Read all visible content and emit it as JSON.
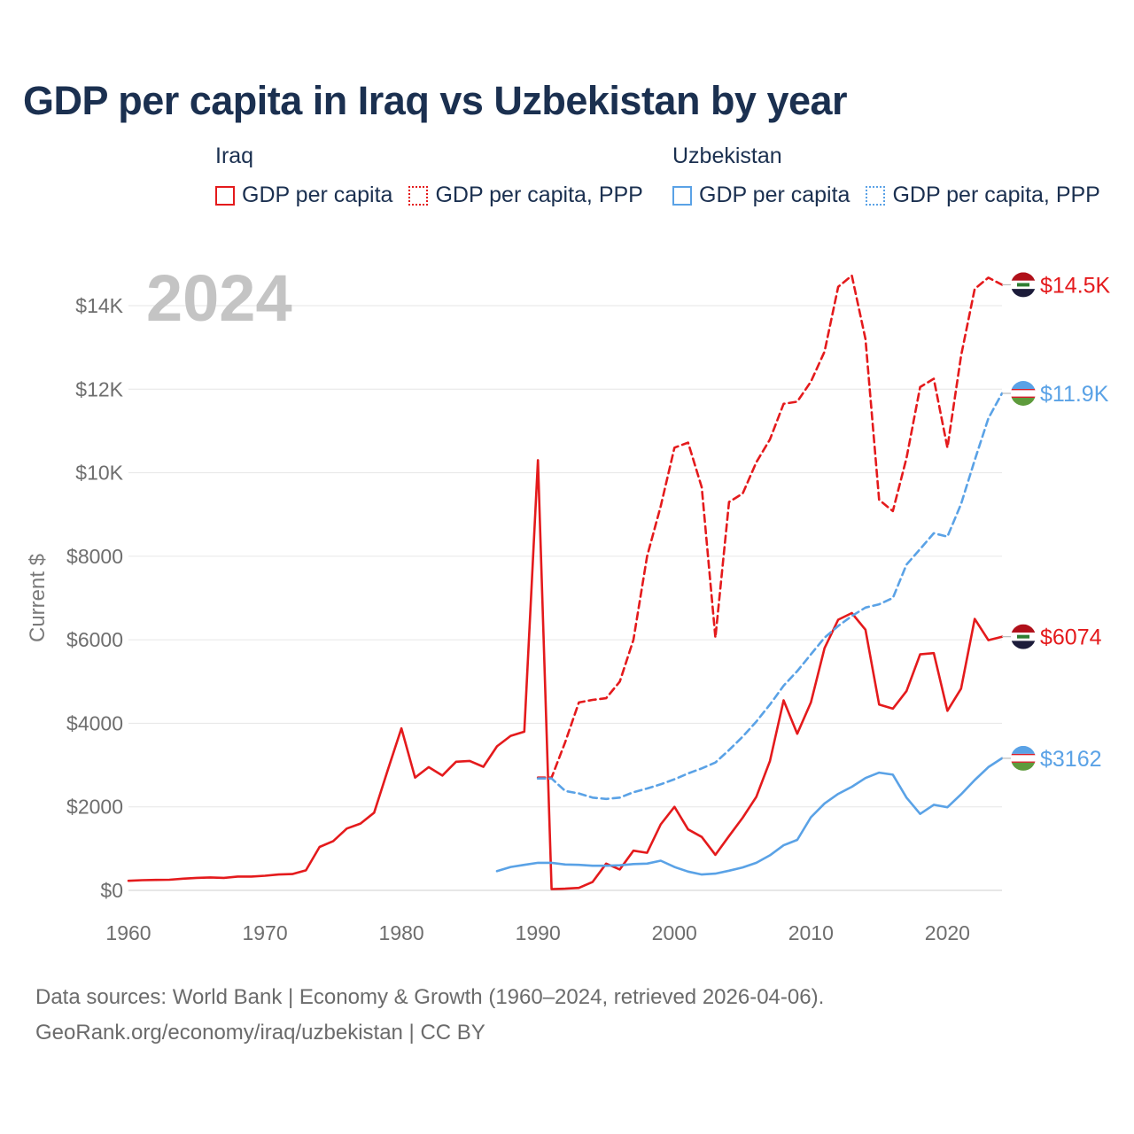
{
  "title": "GDP per capita in Iraq vs Uzbekistan by year",
  "legend": {
    "groups": [
      {
        "country": "Iraq",
        "color": "#e41a1c",
        "items": [
          {
            "label": "GDP per capita",
            "style": "solid"
          },
          {
            "label": "GDP per capita, PPP",
            "style": "dotted"
          }
        ]
      },
      {
        "country": "Uzbekistan",
        "color": "#5aa2e6",
        "items": [
          {
            "label": "GDP per capita",
            "style": "solid"
          },
          {
            "label": "GDP per capita, PPP",
            "style": "dotted"
          }
        ]
      }
    ]
  },
  "year_label": "2024",
  "source": {
    "line1": "Data sources: World Bank | Economy & Growth (1960–2024, retrieved 2026-04-06).",
    "line2": "GeoRank.org/economy/iraq/uzbekistan | CC BY"
  },
  "chart_data": {
    "type": "line",
    "title": "GDP per capita in Iraq vs Uzbekistan by year",
    "ylabel": "Current $",
    "xlabel": "",
    "xlim": [
      1960,
      2024
    ],
    "ylim": [
      0,
      14000
    ],
    "grid": true,
    "x_ticks": [
      1960,
      1970,
      1980,
      1990,
      2000,
      2010,
      2020
    ],
    "y_ticks": [
      0,
      2000,
      4000,
      6000,
      8000,
      10000,
      12000,
      14000
    ],
    "y_tick_labels": [
      "$0",
      "$2000",
      "$4000",
      "$6000",
      "$8000",
      "$10K",
      "$12K",
      "$14K"
    ],
    "series": [
      {
        "name": "Iraq GDP per capita",
        "country": "Iraq",
        "style": "solid",
        "color": "#e41a1c",
        "end_label": "$6074",
        "x": [
          1960,
          1961,
          1962,
          1963,
          1964,
          1965,
          1966,
          1967,
          1968,
          1969,
          1970,
          1971,
          1972,
          1973,
          1974,
          1975,
          1976,
          1977,
          1978,
          1979,
          1980,
          1981,
          1982,
          1983,
          1984,
          1985,
          1986,
          1987,
          1988,
          1989,
          1990,
          1991,
          1992,
          1993,
          1994,
          1995,
          1996,
          1997,
          1998,
          1999,
          2000,
          2001,
          2002,
          2003,
          2004,
          2005,
          2006,
          2007,
          2008,
          2009,
          2010,
          2011,
          2012,
          2013,
          2014,
          2015,
          2016,
          2017,
          2018,
          2019,
          2020,
          2021,
          2022,
          2023,
          2024
        ],
        "y": [
          230,
          245,
          250,
          255,
          280,
          300,
          310,
          300,
          330,
          330,
          350,
          380,
          390,
          480,
          1040,
          1180,
          1480,
          1600,
          1860,
          2880,
          3880,
          2700,
          2950,
          2750,
          3080,
          3100,
          2960,
          3450,
          3700,
          3800,
          10300,
          30,
          40,
          60,
          200,
          640,
          500,
          950,
          900,
          1580,
          2000,
          1460,
          1280,
          850,
          1300,
          1740,
          2240,
          3100,
          4550,
          3750,
          4500,
          5800,
          6480,
          6640,
          6240,
          4450,
          4350,
          4770,
          5650,
          5680,
          4300,
          4830,
          6500,
          5990,
          6074
        ]
      },
      {
        "name": "Iraq GDP per capita, PPP",
        "country": "Iraq",
        "style": "dashed",
        "color": "#e41a1c",
        "end_label": "$14.5K",
        "x": [
          1990,
          1991,
          1992,
          1993,
          1994,
          1995,
          1996,
          1997,
          1998,
          1999,
          2000,
          2001,
          2002,
          2003,
          2004,
          2005,
          2006,
          2007,
          2008,
          2009,
          2010,
          2011,
          2012,
          2013,
          2014,
          2015,
          2016,
          2017,
          2018,
          2019,
          2020,
          2021,
          2022,
          2023,
          2024
        ],
        "y": [
          2700,
          2700,
          3550,
          4500,
          4560,
          4600,
          5000,
          6000,
          8000,
          9200,
          10600,
          10720,
          9650,
          6050,
          9300,
          9500,
          10250,
          10800,
          11650,
          11700,
          12180,
          12900,
          14450,
          14720,
          13200,
          9350,
          9080,
          10350,
          12050,
          12250,
          10600,
          12800,
          14400,
          14670,
          14500
        ]
      },
      {
        "name": "Uzbekistan GDP per capita",
        "country": "Uzbekistan",
        "style": "solid",
        "color": "#5aa2e6",
        "end_label": "$3162",
        "x": [
          1987,
          1988,
          1989,
          1990,
          1991,
          1992,
          1993,
          1994,
          1995,
          1996,
          1997,
          1998,
          1999,
          2000,
          2001,
          2002,
          2003,
          2004,
          2005,
          2006,
          2007,
          2008,
          2009,
          2010,
          2011,
          2012,
          2013,
          2014,
          2015,
          2016,
          2017,
          2018,
          2019,
          2020,
          2021,
          2022,
          2023,
          2024
        ],
        "y": [
          460,
          560,
          610,
          660,
          660,
          620,
          610,
          590,
          590,
          600,
          630,
          640,
          710,
          560,
          450,
          380,
          400,
          470,
          550,
          660,
          840,
          1080,
          1210,
          1750,
          2080,
          2310,
          2480,
          2690,
          2820,
          2770,
          2220,
          1830,
          2050,
          1990,
          2300,
          2640,
          2950,
          3162
        ]
      },
      {
        "name": "Uzbekistan GDP per capita, PPP",
        "country": "Uzbekistan",
        "style": "dashed",
        "color": "#5aa2e6",
        "end_label": "$11.9K",
        "x": [
          1990,
          1991,
          1992,
          1993,
          1994,
          1995,
          1996,
          1997,
          1998,
          1999,
          2000,
          2001,
          2002,
          2003,
          2004,
          2005,
          2006,
          2007,
          2008,
          2009,
          2010,
          2011,
          2012,
          2013,
          2014,
          2015,
          2016,
          2017,
          2018,
          2019,
          2020,
          2021,
          2022,
          2023,
          2024
        ],
        "y": [
          2680,
          2680,
          2380,
          2320,
          2220,
          2190,
          2220,
          2350,
          2440,
          2540,
          2660,
          2800,
          2920,
          3060,
          3360,
          3680,
          4040,
          4450,
          4900,
          5250,
          5650,
          6050,
          6330,
          6570,
          6770,
          6850,
          7000,
          7800,
          8170,
          8550,
          8470,
          9250,
          10300,
          11300,
          11900
        ]
      }
    ]
  }
}
